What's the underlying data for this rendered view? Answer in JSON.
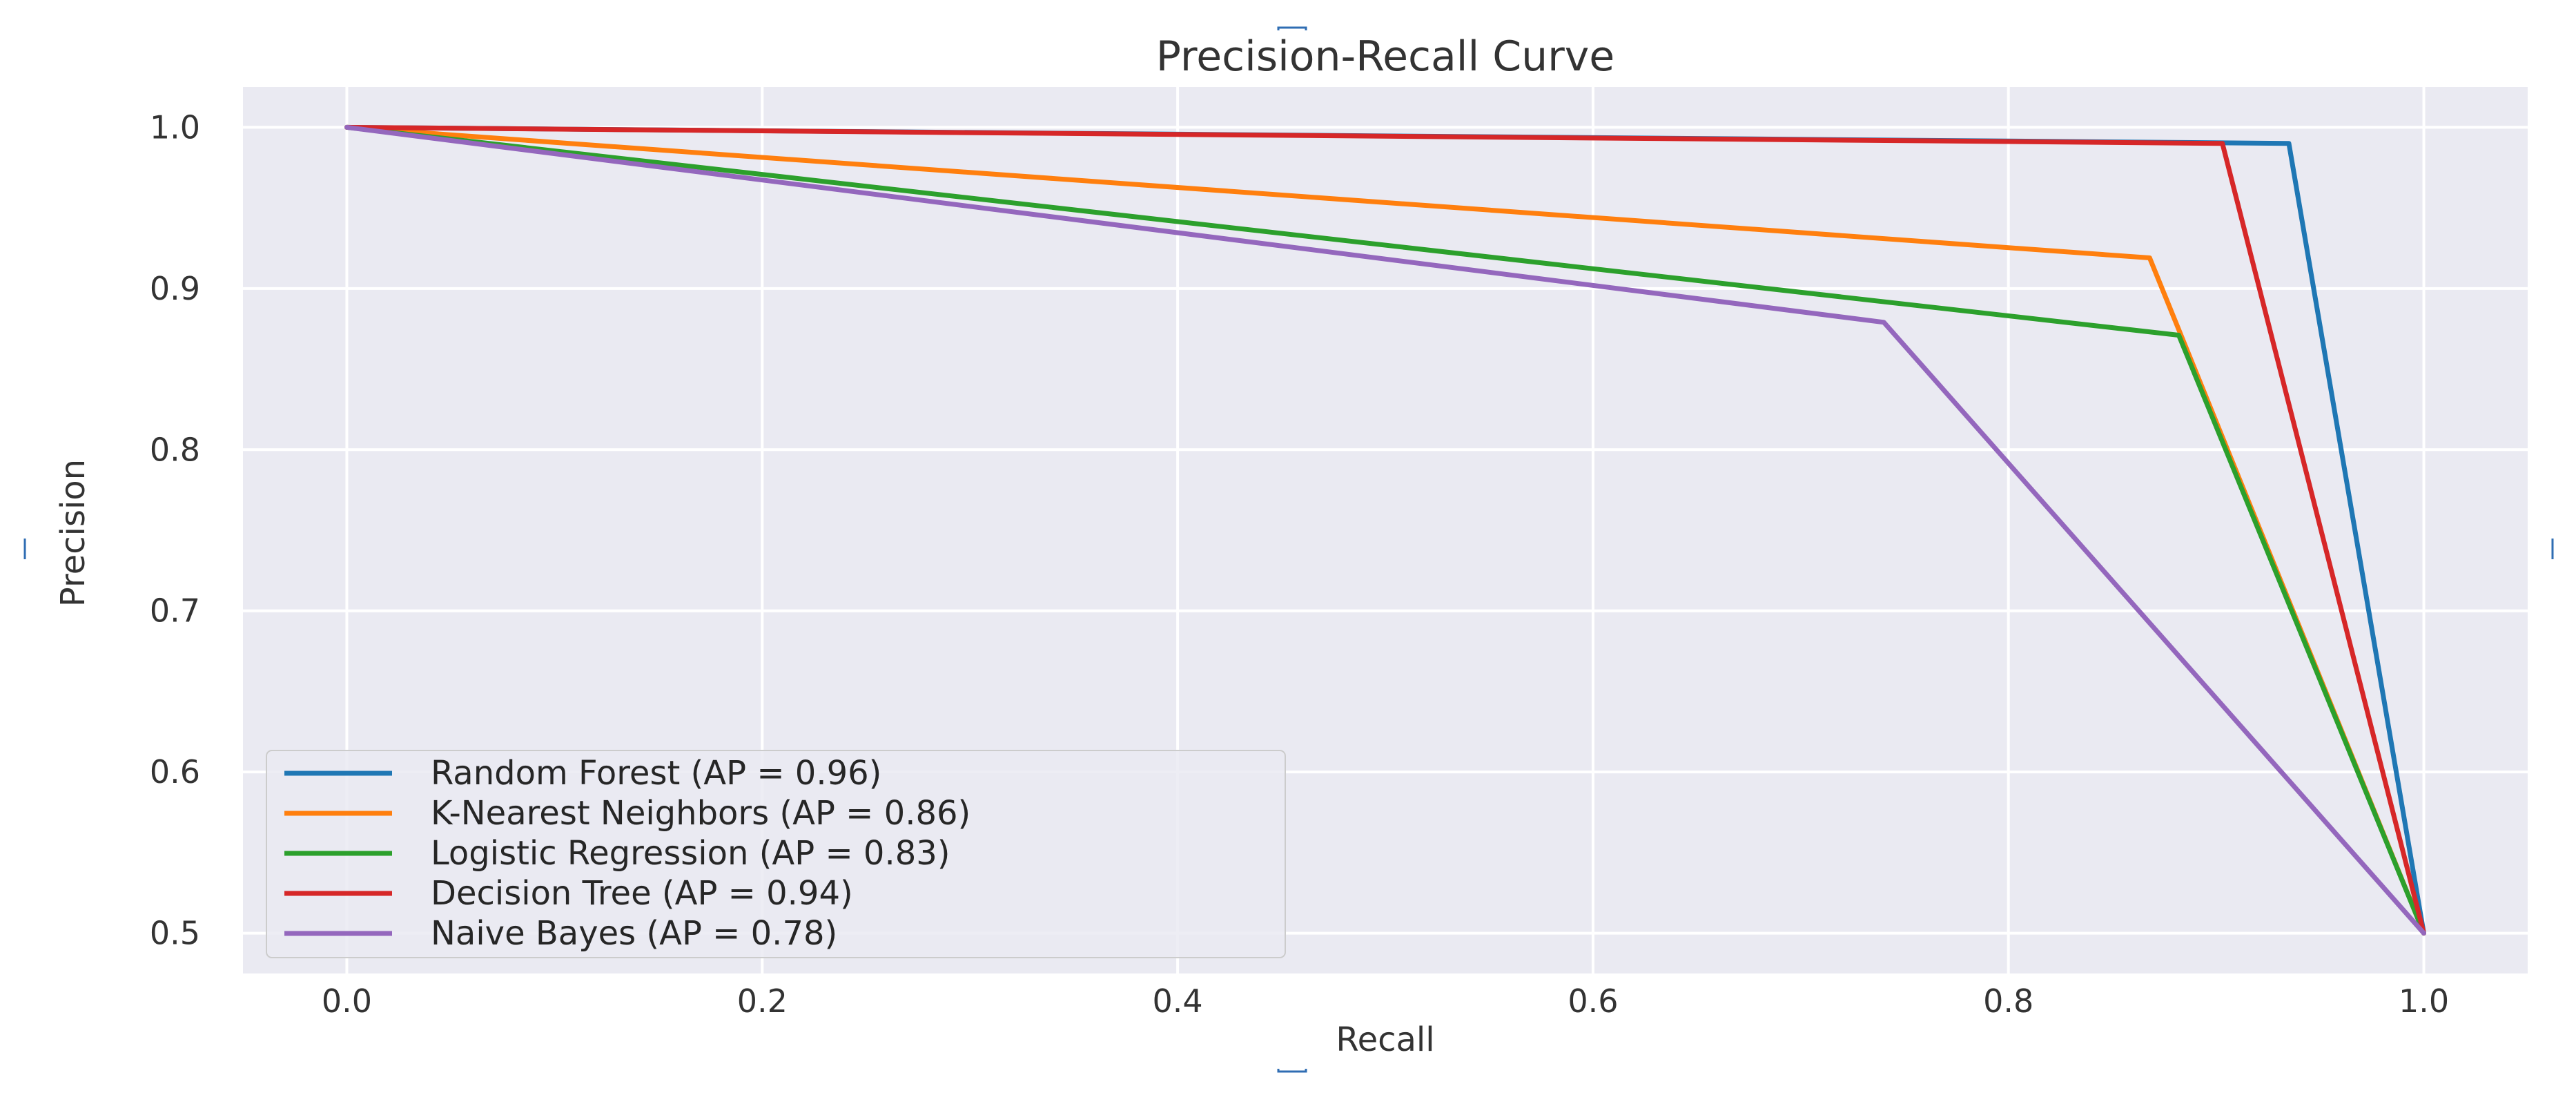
{
  "chart_data": {
    "type": "line",
    "title": "Precision-Recall Curve",
    "xlabel": "Recall",
    "ylabel": "Precision",
    "xlim": [
      -0.05,
      1.05
    ],
    "ylim": [
      0.475,
      1.025
    ],
    "xticks": [
      0.0,
      0.2,
      0.4,
      0.6,
      0.8,
      1.0
    ],
    "xtick_labels": [
      "0.0",
      "0.2",
      "0.4",
      "0.6",
      "0.8",
      "1.0"
    ],
    "yticks": [
      0.5,
      0.6,
      0.7,
      0.8,
      0.9,
      1.0
    ],
    "ytick_labels": [
      "0.5",
      "0.6",
      "0.7",
      "0.8",
      "0.9",
      "1.0"
    ],
    "grid": true,
    "legend_position": "lower-left",
    "background": "#eaeaf2",
    "series": [
      {
        "name": "Random Forest (AP = 0.96)",
        "color": "#1f77b4",
        "x": [
          0.0,
          0.935,
          1.0
        ],
        "y": [
          1.0,
          0.99,
          0.5
        ]
      },
      {
        "name": "K-Nearest Neighbors (AP = 0.86)",
        "color": "#ff7f0e",
        "x": [
          0.0,
          0.868,
          1.0
        ],
        "y": [
          1.0,
          0.919,
          0.5
        ]
      },
      {
        "name": "Logistic Regression (AP = 0.83)",
        "color": "#2ca02c",
        "x": [
          0.0,
          0.882,
          1.0
        ],
        "y": [
          1.0,
          0.871,
          0.5
        ]
      },
      {
        "name": "Decision Tree (AP = 0.94)",
        "color": "#d62728",
        "x": [
          0.0,
          0.903,
          1.0
        ],
        "y": [
          1.0,
          0.99,
          0.5
        ]
      },
      {
        "name": "Naive Bayes (AP = 0.78)",
        "color": "#9467bd",
        "x": [
          0.0,
          0.74,
          1.0
        ],
        "y": [
          1.0,
          0.879,
          0.5
        ]
      }
    ]
  }
}
